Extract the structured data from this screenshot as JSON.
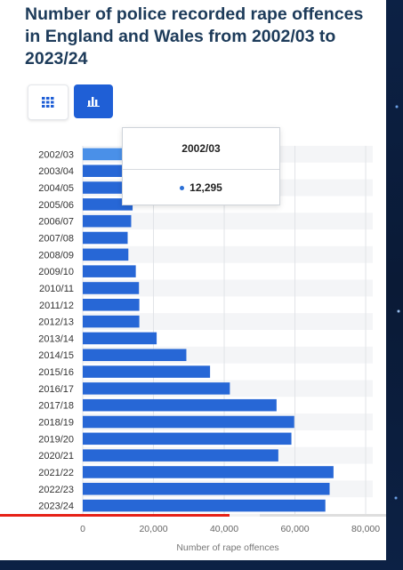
{
  "chart_data": {
    "type": "bar",
    "orientation": "horizontal",
    "title": "Number of police recorded rape offences in England and Wales from 2002/03 to 2023/24",
    "xlabel": "Number of rape offences",
    "ylabel": "",
    "categories": [
      "2002/03",
      "2003/04",
      "2004/05",
      "2005/06",
      "2006/07",
      "2007/08",
      "2008/09",
      "2009/10",
      "2010/11",
      "2011/12",
      "2012/13",
      "2013/14",
      "2014/15",
      "2015/16",
      "2016/17",
      "2017/18",
      "2018/19",
      "2019/20",
      "2020/21",
      "2021/22",
      "2022/23",
      "2023/24"
    ],
    "series": [
      {
        "values": [
          12295,
          13200,
          13600,
          14100,
          13700,
          12700,
          12900,
          15000,
          15900,
          16000,
          16000,
          20900,
          29300,
          36000,
          41600,
          54800,
          59800,
          59000,
          55300,
          70900,
          69800,
          68600
        ]
      }
    ],
    "xlim": [
      0,
      82000
    ],
    "xticks": [
      "0",
      "20,000",
      "40,000",
      "60,000",
      "80,000"
    ],
    "xtick_values": [
      0,
      20000,
      40000,
      60000,
      80000
    ],
    "grid": true,
    "legend": "none",
    "highlighted_category": "2002/03"
  },
  "tooltip": {
    "category": "2002/03",
    "value": "12,295"
  },
  "controls": {
    "table_icon": "table-grid-icon",
    "chart_icon": "bar-chart-icon"
  },
  "colors": {
    "bar": "#2767d6",
    "bar_highlight": "#4a90e8",
    "title": "#1d3b5a",
    "accent": "#1f5fd6"
  }
}
